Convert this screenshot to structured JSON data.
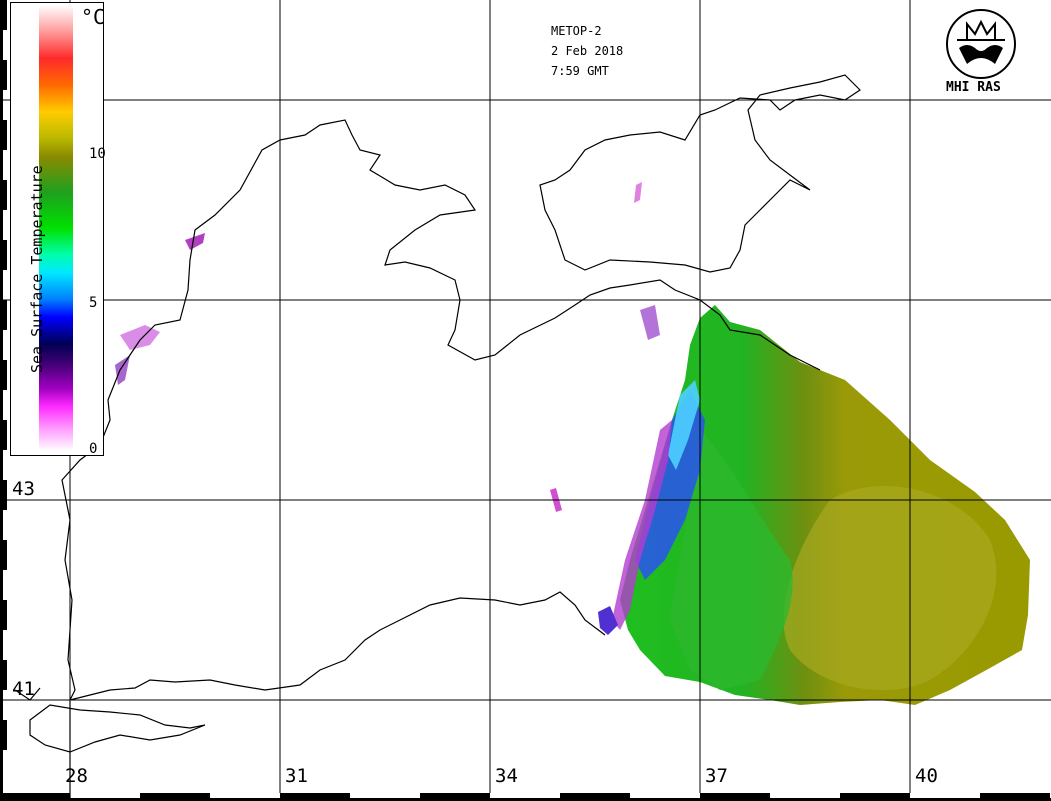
{
  "satellite": "METOP-2",
  "date": "2 Feb 2018",
  "time": "7:59 GMT",
  "organization": "MHI RAS",
  "legend": {
    "title": "Sea Surface Temperature",
    "unit": "°C",
    "ticks": [
      "0",
      "5",
      "10"
    ]
  },
  "longitude_labels": [
    "28",
    "31",
    "34",
    "37",
    "40"
  ],
  "latitude_labels": [
    "41",
    "43"
  ],
  "colors": {
    "sst_warm": "#8f8f00",
    "sst_mid": "#19b419",
    "sst_cold": "#2a3cff",
    "sst_coldest": "#cc30cc",
    "coastline": "#000000",
    "grid": "#000000"
  }
}
